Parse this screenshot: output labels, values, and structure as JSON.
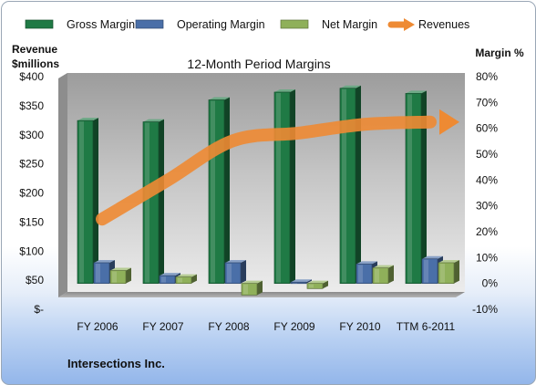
{
  "chart_data": {
    "type": "bar",
    "title": "12-Month Period Margins",
    "company": "Intersections Inc.",
    "categories": [
      "FY 2006",
      "FY 2007",
      "FY 2008",
      "FY 2009",
      "FY 2010",
      "TTM 6-2011"
    ],
    "series": [
      {
        "name": "Gross Margin",
        "axis": "right",
        "values": [
          63,
          62.5,
          71,
          74,
          75.5,
          73.5
        ],
        "color": "#1f7a45"
      },
      {
        "name": "Operating Margin",
        "axis": "right",
        "values": [
          8,
          3,
          8,
          0.5,
          7.5,
          9.5
        ],
        "color": "#4a6fa8"
      },
      {
        "name": "Net Margin",
        "axis": "right",
        "values": [
          5,
          2.5,
          -4.5,
          -2,
          6,
          8
        ],
        "color": "#8fb05a"
      },
      {
        "name": "Revenues",
        "axis": "left",
        "type": "line",
        "values": [
          155,
          222,
          290,
          303,
          318,
          322
        ],
        "color": "#ee8a33"
      }
    ],
    "y_left": {
      "label_line1": "Revenue",
      "label_line2": "$millions",
      "ticks": [
        "$400",
        "$350",
        "$300",
        "$250",
        "$200",
        "$150",
        "$100",
        "$50",
        "$-"
      ],
      "range": [
        0,
        400
      ]
    },
    "y_right": {
      "label": "Margin %",
      "ticks": [
        "80%",
        "70%",
        "60%",
        "50%",
        "40%",
        "30%",
        "20%",
        "10%",
        "0%",
        "-10%"
      ],
      "range": [
        -10,
        80
      ]
    },
    "grid": false,
    "legend_position": "top"
  }
}
